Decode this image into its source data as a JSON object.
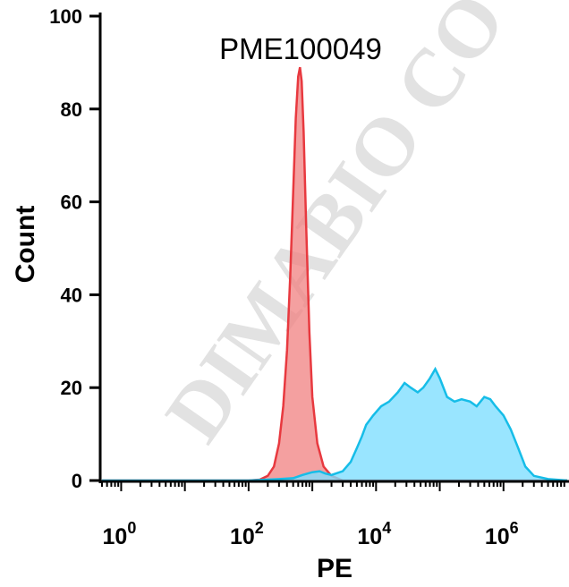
{
  "chart_data": {
    "type": "area",
    "title": "PME100049",
    "xlabel": "PE",
    "ylabel": "Count",
    "x_scale": "log",
    "xlim": [
      0.5,
      10000000
    ],
    "ylim": [
      0,
      100
    ],
    "x_ticks": [
      {
        "value": 1,
        "base": "10",
        "exp": "0"
      },
      {
        "value": 100,
        "base": "10",
        "exp": "2"
      },
      {
        "value": 10000,
        "base": "10",
        "exp": "4"
      },
      {
        "value": 1000000,
        "base": "10",
        "exp": "6"
      }
    ],
    "y_ticks": [
      0,
      20,
      40,
      60,
      80,
      100
    ],
    "watermark": "DIMABIO CO",
    "series": [
      {
        "color": "#f08080",
        "stroke": "#e8393f",
        "points": [
          [
            0.5,
            0
          ],
          [
            100,
            0
          ],
          [
            150,
            0.2
          ],
          [
            200,
            1
          ],
          [
            250,
            3
          ],
          [
            300,
            8
          ],
          [
            350,
            16
          ],
          [
            400,
            28
          ],
          [
            450,
            44
          ],
          [
            500,
            62
          ],
          [
            550,
            78
          ],
          [
            600,
            87
          ],
          [
            640,
            89
          ],
          [
            680,
            86
          ],
          [
            730,
            75
          ],
          [
            800,
            55
          ],
          [
            900,
            32
          ],
          [
            1000,
            18
          ],
          [
            1200,
            8
          ],
          [
            1500,
            3
          ],
          [
            2000,
            1
          ],
          [
            3000,
            0
          ],
          [
            10000000,
            0
          ]
        ]
      },
      {
        "color": "#7fdfff",
        "stroke": "#16bde8",
        "points": [
          [
            0.5,
            0
          ],
          [
            100,
            0
          ],
          [
            300,
            0.3
          ],
          [
            500,
            0.5
          ],
          [
            700,
            1.2
          ],
          [
            1000,
            1.8
          ],
          [
            1300,
            2.0
          ],
          [
            1600,
            1.5
          ],
          [
            2000,
            1.2
          ],
          [
            3000,
            2
          ],
          [
            4000,
            4
          ],
          [
            5000,
            7
          ],
          [
            6000,
            9.5
          ],
          [
            7000,
            12
          ],
          [
            9000,
            14
          ],
          [
            12000,
            16
          ],
          [
            16000,
            17
          ],
          [
            22000,
            19
          ],
          [
            28000,
            21
          ],
          [
            35000,
            20
          ],
          [
            45000,
            19
          ],
          [
            55000,
            20
          ],
          [
            70000,
            22
          ],
          [
            85000,
            24
          ],
          [
            100000,
            22
          ],
          [
            130000,
            18
          ],
          [
            170000,
            17
          ],
          [
            220000,
            17.5
          ],
          [
            300000,
            17
          ],
          [
            380000,
            16
          ],
          [
            500000,
            18
          ],
          [
            620000,
            17.5
          ],
          [
            750000,
            16
          ],
          [
            1000000,
            14
          ],
          [
            1300000,
            11
          ],
          [
            1700000,
            7
          ],
          [
            2200000,
            3
          ],
          [
            3000000,
            1
          ],
          [
            5000000,
            0.3
          ],
          [
            10000000,
            0
          ]
        ]
      }
    ]
  }
}
